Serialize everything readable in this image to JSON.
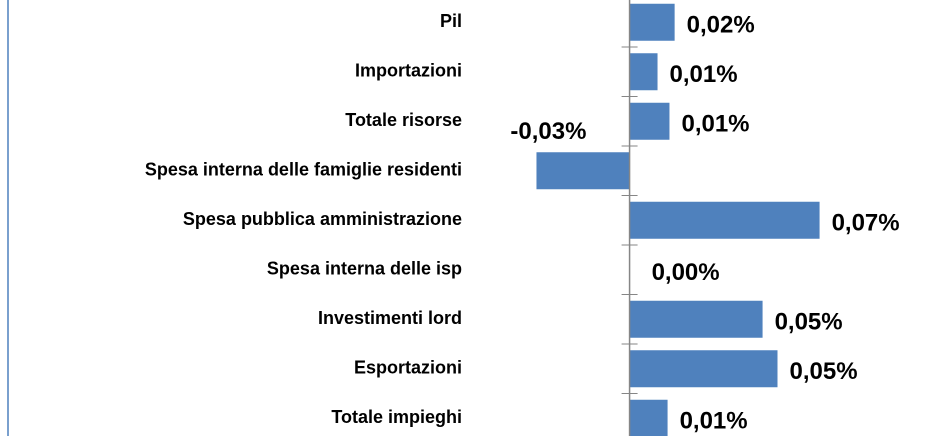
{
  "chart_data": {
    "type": "hbar",
    "categories": [
      "Pil",
      "Importazioni",
      "Totale risorse",
      "Spesa interna delle famiglie residenti",
      "Spesa pubblica amministrazione",
      "Spesa interna delle isp",
      "Investimenti lord",
      "Esportazioni",
      "Totale impieghi"
    ],
    "values": [
      0.0166,
      0.0103,
      0.0147,
      -0.0343,
      0.07,
      0,
      0.049,
      0.0545,
      0.014
    ],
    "value_labels": [
      "0,02%",
      "0,01%",
      "0,01%",
      "-0,03%",
      "0,07%",
      "0,00%",
      "0,05%",
      "0,05%",
      "0,01%"
    ],
    "color": "#4f81bd",
    "xlim": [
      -0.04,
      0.1
    ]
  }
}
